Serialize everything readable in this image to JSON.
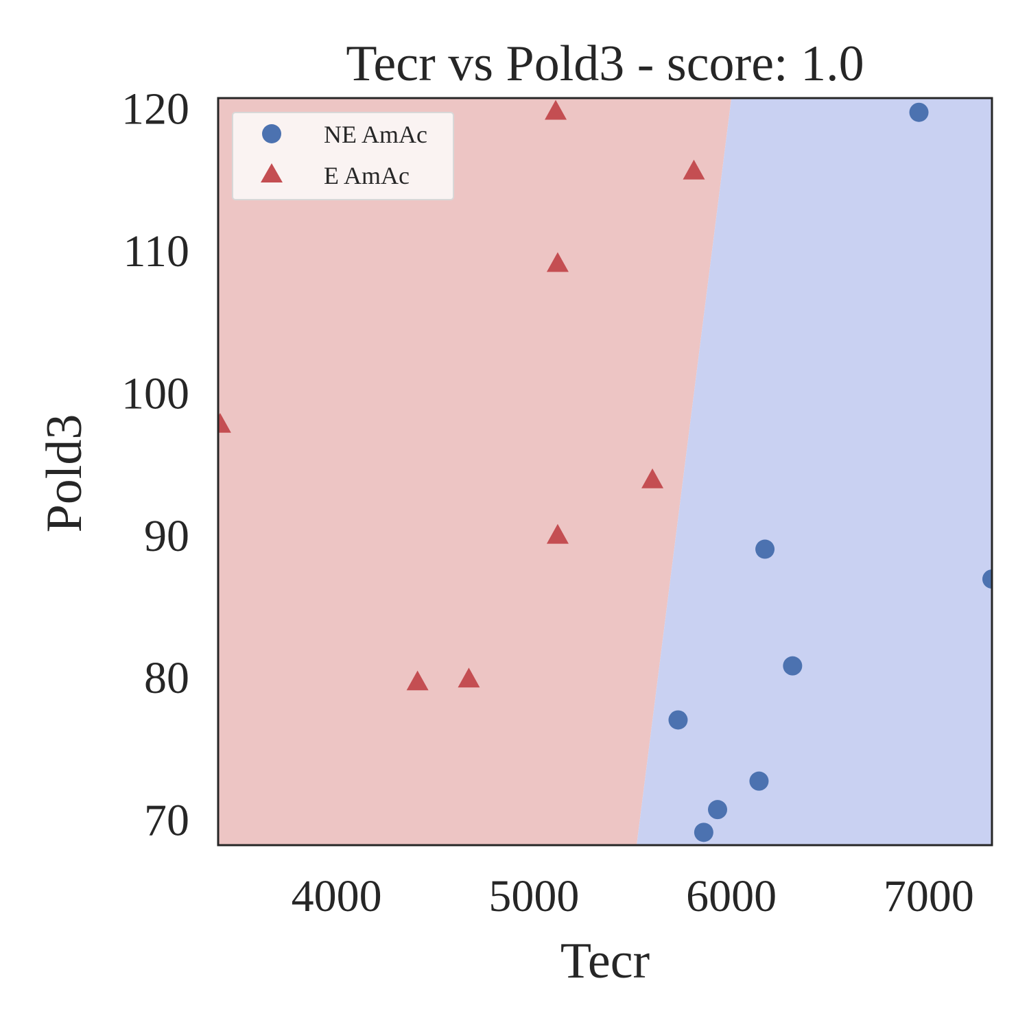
{
  "chart_data": {
    "type": "scatter",
    "title": "Tecr vs Pold3 - score: 1.0",
    "xlabel": "Tecr",
    "ylabel": "Pold3",
    "xlim": [
      3400,
      7320
    ],
    "ylim": [
      68.2,
      120.7
    ],
    "xticks": [
      4000,
      5000,
      6000,
      7000
    ],
    "yticks": [
      70,
      80,
      90,
      100,
      110,
      120
    ],
    "grid": false,
    "legend": {
      "placement": "upper-left",
      "entries": [
        "NE AmAc",
        "E AmAc"
      ]
    },
    "decision_boundary": {
      "points": [
        [
          5520,
          68.2
        ],
        [
          6000,
          120.7
        ]
      ],
      "left_region_class": "E AmAc",
      "right_region_class": "NE AmAc"
    },
    "series": [
      {
        "name": "NE AmAc",
        "marker": "circle",
        "color": "#4c72b0",
        "points": [
          [
            6950,
            119.7
          ],
          [
            6170,
            89.0
          ],
          [
            7320,
            86.9
          ],
          [
            6310,
            80.8
          ],
          [
            5730,
            77.0
          ],
          [
            6140,
            72.7
          ],
          [
            5930,
            70.7
          ],
          [
            5860,
            69.1
          ]
        ]
      },
      {
        "name": "E AmAc",
        "marker": "triangle",
        "color": "#c44e52",
        "points": [
          [
            5110,
            119.8
          ],
          [
            5810,
            115.6
          ],
          [
            5120,
            109.1
          ],
          [
            3410,
            97.8
          ],
          [
            5600,
            93.9
          ],
          [
            5120,
            90.0
          ],
          [
            4410,
            79.7
          ],
          [
            4670,
            79.9
          ]
        ]
      }
    ],
    "region_colors": {
      "E AmAc": "#edc5c4",
      "NE AmAc": "#c9d1f2"
    },
    "colors": {
      "frame": "#262626",
      "text": "#262626"
    }
  }
}
